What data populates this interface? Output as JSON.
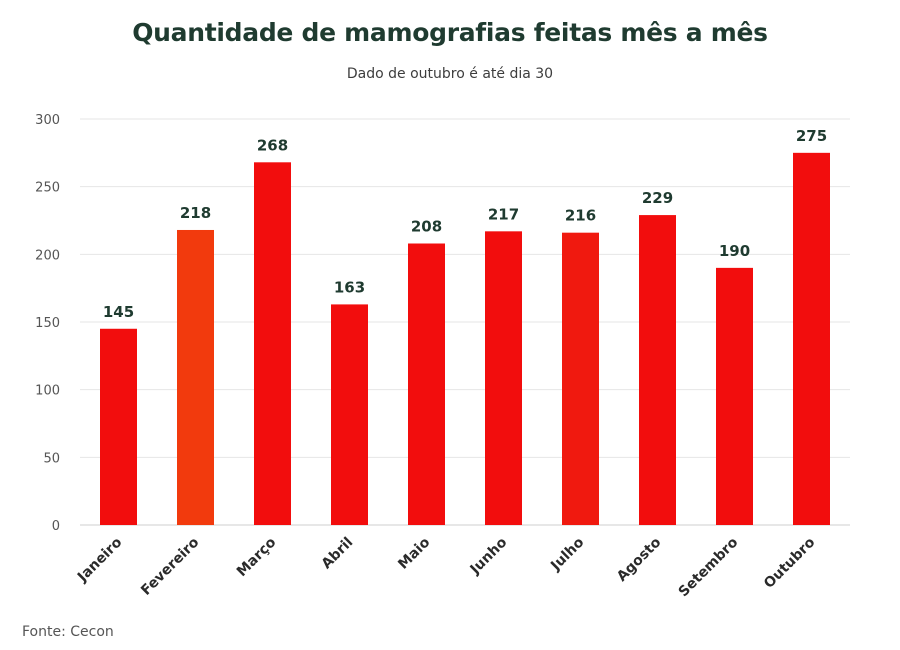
{
  "header": {
    "title": "Quantidade de mamografias feitas mês a mês",
    "subtitle": "Dado de outubro é até dia 30"
  },
  "footer": {
    "source": "Fonte: Cecon"
  },
  "chart_data": {
    "type": "bar",
    "title": "Quantidade de mamografias feitas mês a mês",
    "subtitle": "Dado de outubro é até dia 30",
    "categories": [
      "Janeiro",
      "Fevereiro",
      "Março",
      "Abril",
      "Maio",
      "Junho",
      "Julho",
      "Agosto",
      "Setembro",
      "Outubro"
    ],
    "values": [
      145,
      218,
      268,
      163,
      208,
      217,
      216,
      229,
      190,
      275
    ],
    "ylim": [
      0,
      300
    ],
    "yticks": [
      0,
      50,
      100,
      150,
      200,
      250,
      300
    ],
    "grid": true,
    "legend": "none",
    "bar_colors": [
      "#f20d0d",
      "#f23a0d",
      "#f20d0d",
      "#f20d0d",
      "#f20d0d",
      "#f20d0d",
      "#f0190f",
      "#f20d0d",
      "#f20d0d",
      "#f20d0d"
    ],
    "gridline_color": "#e6e6e6",
    "source": "Fonte: Cecon"
  }
}
